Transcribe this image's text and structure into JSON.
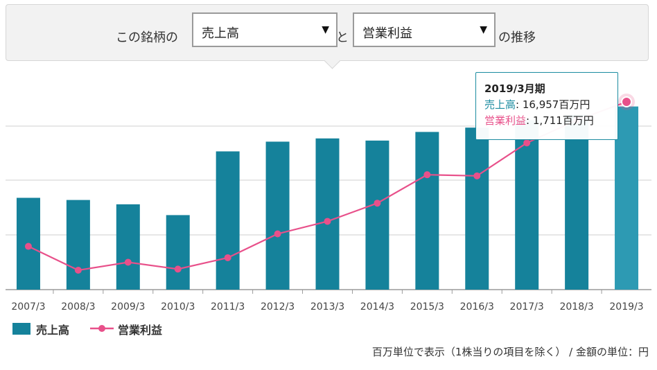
{
  "selector": {
    "prefix": "この銘柄の",
    "metric1": "売上高",
    "connector": "と",
    "metric2": "営業利益",
    "suffix": "の推移",
    "arrow": "▼"
  },
  "tooltip": {
    "period": "2019/3月期",
    "sales_label": "売上高",
    "sales_value": ": 16,957百万円",
    "op_label": "営業利益",
    "op_value": ": 1,711百万円"
  },
  "legend": {
    "sales": "売上高",
    "op": "営業利益"
  },
  "footnote": "百万単位で表示（1株当りの項目を除く） / 金額の単位：円",
  "colors": {
    "bar": "#15829b",
    "bar_highlight": "#2d9ab3",
    "line": "#e8508a",
    "tooltip_border": "#1a8ba0"
  },
  "chart_data": {
    "type": "bar+line",
    "categories": [
      "2007/3",
      "2008/3",
      "2009/3",
      "2010/3",
      "2011/3",
      "2012/3",
      "2013/3",
      "2014/3",
      "2015/3",
      "2016/3",
      "2017/3",
      "2018/3",
      "2019/3"
    ],
    "series": [
      {
        "name": "売上高",
        "type": "bar",
        "values": [
          8500,
          8300,
          7900,
          6900,
          12800,
          13700,
          14000,
          13800,
          14600,
          15000,
          15700,
          16200,
          16957
        ]
      },
      {
        "name": "営業利益",
        "type": "line",
        "values": [
          440,
          230,
          300,
          240,
          340,
          550,
          660,
          820,
          1070,
          1060,
          1350,
          1550,
          1711
        ]
      }
    ],
    "grid": true,
    "legend_position": "bottom-left",
    "highlight_index": 12
  }
}
